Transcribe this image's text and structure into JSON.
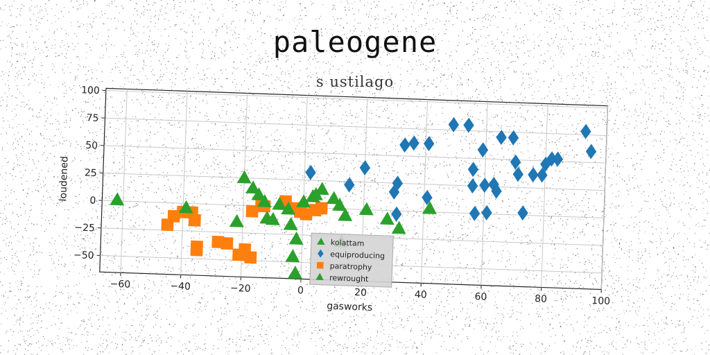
{
  "chart_data": {
    "type": "scatter",
    "title": "paleogene",
    "subtitle": "s ustilago",
    "xlabel": "gasworks",
    "ylabel": "loudened",
    "xlim": [
      -67,
      100
    ],
    "ylim": [
      -65,
      102
    ],
    "xticks": [
      -60,
      -40,
      -20,
      0,
      20,
      40,
      60,
      80,
      100
    ],
    "yticks": [
      100,
      75,
      50,
      25,
      0,
      -25,
      -50
    ],
    "xtick_labels": [
      "−60",
      "−40",
      "−20",
      "0",
      "20",
      "40",
      "60",
      "80",
      "100"
    ],
    "ytick_labels": [
      "100",
      "75",
      "50",
      "25",
      "0",
      "−25",
      "−50"
    ],
    "grid": true,
    "legend_position": "lower-center",
    "series": [
      {
        "name": "kolattam",
        "color": "#2ca02c",
        "marker": "triangle",
        "points": []
      },
      {
        "name": "equiproducing",
        "color": "#1f77b4",
        "marker": "diamond",
        "points": [
          [
            2,
            32
          ],
          [
            15,
            22
          ],
          [
            20,
            38
          ],
          [
            30,
            17
          ],
          [
            31,
            25
          ],
          [
            31,
            -3
          ],
          [
            33,
            60
          ],
          [
            36,
            62
          ],
          [
            41,
            13
          ],
          [
            41,
            62
          ],
          [
            49,
            80
          ],
          [
            54,
            80
          ],
          [
            56,
            40
          ],
          [
            56,
            25
          ],
          [
            57,
            0
          ],
          [
            59,
            58
          ],
          [
            60,
            26
          ],
          [
            61,
            1
          ],
          [
            63,
            27
          ],
          [
            64,
            21
          ],
          [
            65,
            70
          ],
          [
            69,
            70
          ],
          [
            70,
            48
          ],
          [
            71,
            37
          ],
          [
            73,
            2
          ],
          [
            76,
            37
          ],
          [
            79,
            37
          ],
          [
            80,
            47
          ],
          [
            82,
            52
          ],
          [
            84,
            52
          ],
          [
            93,
            78
          ],
          [
            95,
            60
          ]
        ]
      },
      {
        "name": "paratrophy",
        "color": "#ff7f0e",
        "marker": "square",
        "points": [
          [
            -45,
            -20
          ],
          [
            -43,
            -12
          ],
          [
            -40,
            -8
          ],
          [
            -37,
            -8
          ],
          [
            -36,
            -15
          ],
          [
            -35,
            -42
          ],
          [
            -35,
            -39
          ],
          [
            -28,
            -34
          ],
          [
            -25,
            -35
          ],
          [
            -21,
            -45
          ],
          [
            -19,
            -40
          ],
          [
            -17,
            -5
          ],
          [
            -17,
            -47
          ],
          [
            -14,
            0
          ],
          [
            -13,
            0
          ],
          [
            -6,
            5
          ],
          [
            -3,
            -1
          ],
          [
            -1,
            -4
          ],
          [
            1,
            -6
          ],
          [
            4,
            -2
          ],
          [
            6,
            0
          ]
        ]
      },
      {
        "name": "rewrought",
        "color": "#2ca02c",
        "marker": "triangle",
        "points": [
          [
            -62,
            1
          ],
          [
            -39,
            -4
          ],
          [
            -22,
            -15
          ],
          [
            -20,
            25
          ],
          [
            -17,
            16
          ],
          [
            -15,
            10
          ],
          [
            -13,
            4
          ],
          [
            -12,
            -11
          ],
          [
            -10,
            -12
          ],
          [
            -8,
            2
          ],
          [
            -5,
            -2
          ],
          [
            -4,
            -16
          ],
          [
            -3,
            -45
          ],
          [
            -2,
            -29
          ],
          [
            -2,
            -60
          ],
          [
            0,
            5
          ],
          [
            3,
            10
          ],
          [
            4,
            12
          ],
          [
            6,
            17
          ],
          [
            10,
            9
          ],
          [
            12,
            3
          ],
          [
            13,
            -30
          ],
          [
            14,
            -6
          ],
          [
            21,
            0
          ],
          [
            28,
            -8
          ],
          [
            32,
            -16
          ],
          [
            42,
            3
          ]
        ]
      }
    ]
  }
}
